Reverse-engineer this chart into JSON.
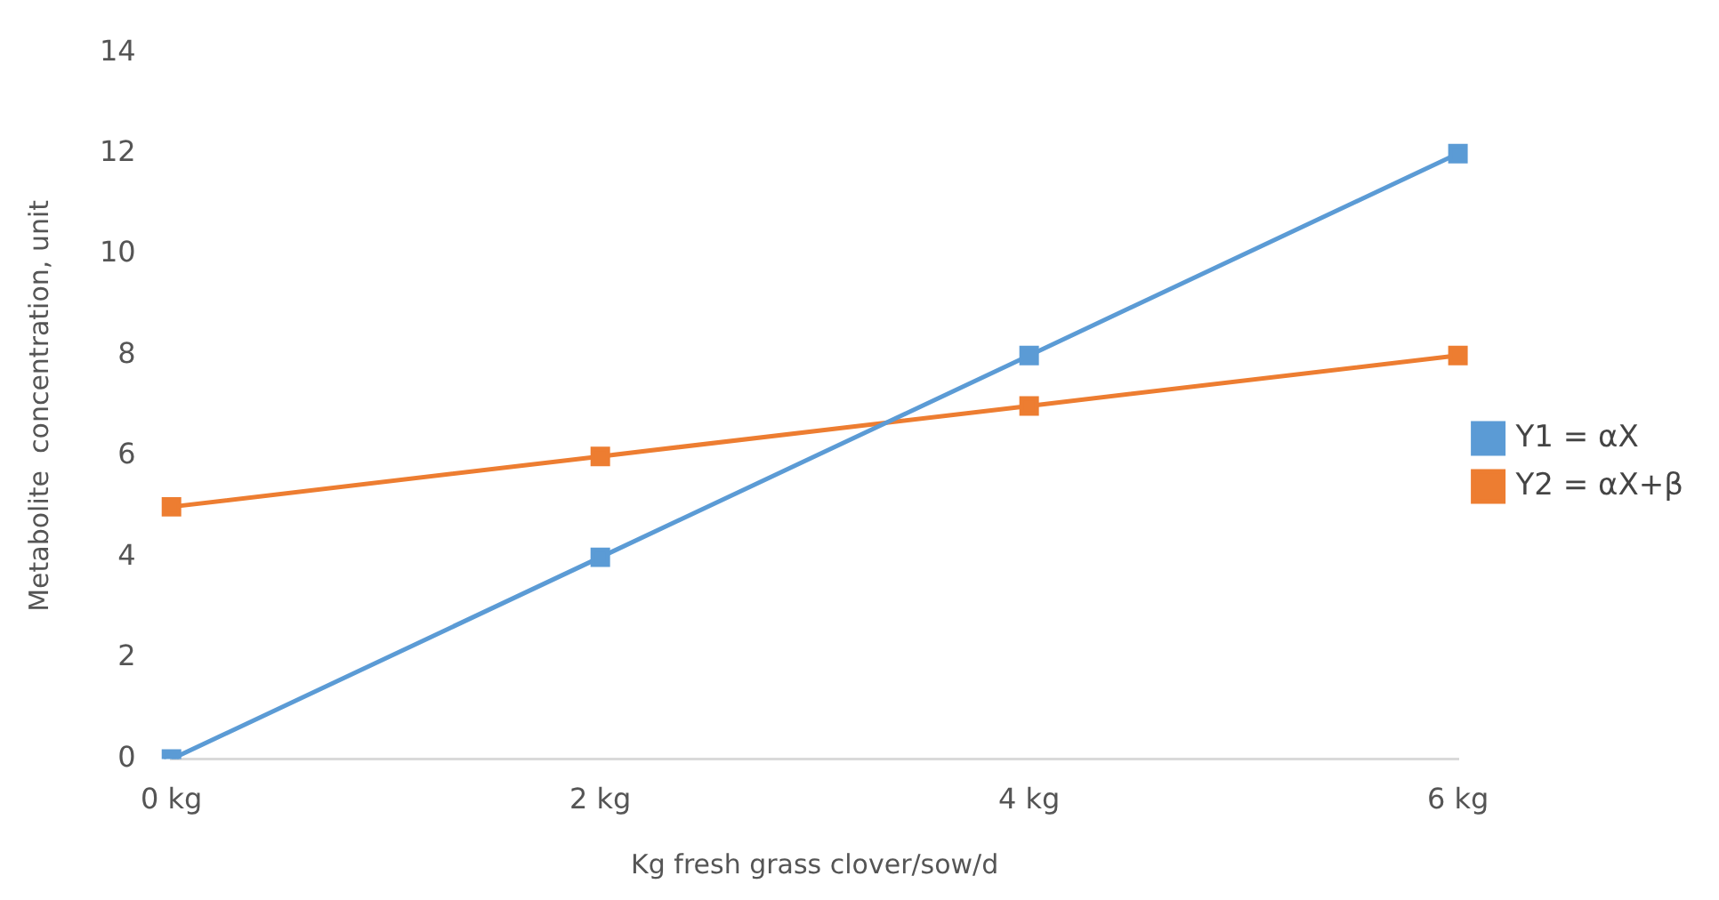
{
  "chart_data": {
    "type": "line",
    "xlabel": "Kg fresh grass clover/sow/d",
    "ylabel": "Metabolite  concentration, unit",
    "categories": [
      "0 kg",
      "2 kg",
      "4 kg",
      "6 kg"
    ],
    "series": [
      {
        "name": "Y1 = αX",
        "color": "#5b9bd5",
        "values": [
          0,
          4,
          8,
          12
        ]
      },
      {
        "name": "Y2 = αX+β",
        "color": "#ed7d31",
        "values": [
          5,
          6,
          7,
          8
        ]
      }
    ],
    "ylim": [
      0,
      14
    ],
    "yticks": [
      0,
      2,
      4,
      6,
      8,
      10,
      12,
      14
    ],
    "grid": false,
    "legend": "right",
    "marker": "square",
    "line_style": "solid"
  }
}
